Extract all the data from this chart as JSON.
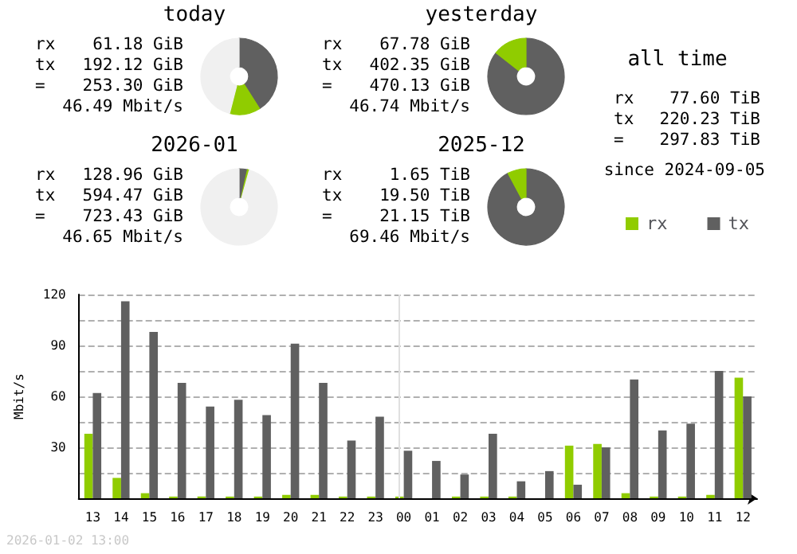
{
  "chart_data": [
    {
      "type": "donut",
      "title": "today",
      "categories": [
        null,
        null,
        null
      ],
      "values": [
        41,
        13,
        46
      ],
      "colors": [
        "#606060",
        "#90cc00",
        "#f0f0f0"
      ],
      "annotations": [
        "rx 61.18 GiB",
        "tx 192.12 GiB",
        "= 253.30 GiB",
        "46.49 Mbit/s"
      ]
    },
    {
      "type": "donut",
      "title": "yesterday",
      "categories": [
        null,
        null
      ],
      "values": [
        85.6,
        14.4
      ],
      "colors": [
        "#606060",
        "#90cc00"
      ],
      "annotations": [
        "rx 67.78 GiB",
        "tx 402.35 GiB",
        "= 470.13 GiB",
        "46.74 Mbit/s"
      ]
    },
    {
      "type": "donut",
      "title": "2026-01",
      "categories": [
        null,
        null,
        null
      ],
      "values": [
        3.5,
        0.8,
        95.7
      ],
      "colors": [
        "#606060",
        "#90cc00",
        "#f0f0f0"
      ],
      "annotations": [
        "rx 128.96 GiB",
        "tx 594.47 GiB",
        "= 723.43 GiB",
        "46.65 Mbit/s"
      ]
    },
    {
      "type": "donut",
      "title": "2025-12",
      "categories": [
        null,
        null
      ],
      "values": [
        92.2,
        7.8
      ],
      "colors": [
        "#606060",
        "#90cc00"
      ],
      "annotations": [
        "rx 1.65 TiB",
        "tx 19.50 TiB",
        "= 21.15 TiB",
        "69.46 Mbit/s"
      ]
    },
    {
      "type": "other",
      "title": "all time",
      "annotations": [
        "rx 77.60 TiB",
        "tx 220.23 TiB",
        "= 297.83 TiB",
        "since 2024-09-05"
      ]
    },
    {
      "type": "bar",
      "ylabel": "Mbit/s",
      "categories": [
        "13",
        "14",
        "15",
        "16",
        "17",
        "18",
        "19",
        "20",
        "21",
        "22",
        "23",
        "00",
        "01",
        "02",
        "03",
        "04",
        "05",
        "06",
        "07",
        "08",
        "09",
        "10",
        "11",
        "12"
      ],
      "series": [
        {
          "name": "rx",
          "color": "#90cc00",
          "values": [
            38,
            12,
            3,
            1,
            1,
            1,
            1,
            2,
            2,
            1,
            1,
            1,
            0,
            1,
            1,
            1,
            0,
            31,
            32,
            3,
            1,
            1,
            2,
            71
          ]
        },
        {
          "name": "tx",
          "color": "#606060",
          "values": [
            62,
            116,
            98,
            68,
            54,
            58,
            49,
            91,
            68,
            34,
            48,
            28,
            22,
            14,
            38,
            10,
            16,
            8,
            30,
            70,
            40,
            44,
            75,
            60
          ]
        }
      ],
      "ylim": [
        0,
        120
      ],
      "yticks": [
        {
          "value": 0,
          "label": null
        },
        {
          "value": 15,
          "label": null
        },
        30,
        {
          "value": 45,
          "label": null
        },
        60,
        {
          "value": 75,
          "label": null
        },
        90,
        {
          "value": 105,
          "label": null
        },
        120
      ],
      "grid": "y",
      "legend": "top right",
      "ref_lines": [
        {
          "axis": "x",
          "value": "00",
          "color": "#e0e0e0"
        }
      ],
      "annotations": [
        "2026-01-02 13:00"
      ]
    }
  ]
}
